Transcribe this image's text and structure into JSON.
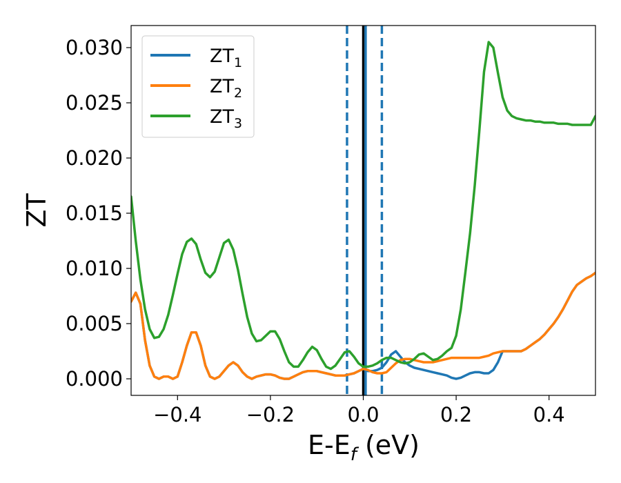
{
  "chart_data": {
    "type": "line",
    "xlabel": {
      "main": "E-E",
      "sub": "f",
      "suffix": " (eV)"
    },
    "ylabel": "ZT",
    "xlim": [
      -0.5,
      0.5
    ],
    "ylim": [
      -0.0015,
      0.032
    ],
    "xticks": [
      -0.4,
      -0.2,
      0.0,
      0.2,
      0.4
    ],
    "xtick_labels": [
      "−0.4",
      "−0.2",
      "0.0",
      "0.2",
      "0.4"
    ],
    "yticks": [
      0.0,
      0.005,
      0.01,
      0.015,
      0.02,
      0.025,
      0.03
    ],
    "ytick_labels": [
      "0.000",
      "0.005",
      "0.010",
      "0.015",
      "0.020",
      "0.025",
      "0.030"
    ],
    "grid": false,
    "legend_position": "top-left",
    "vlines": [
      {
        "x": -0.035,
        "style": "dashed",
        "color": "#1f77b4"
      },
      {
        "x": 0.0,
        "style": "solid",
        "color": "#000000"
      },
      {
        "x": 0.005,
        "style": "solid",
        "color": "#1f77b4"
      },
      {
        "x": 0.04,
        "style": "dashed",
        "color": "#1f77b4"
      }
    ],
    "series": [
      {
        "name": "ZT",
        "sub": "1",
        "color": "#1f77b4",
        "x": [
          -0.5,
          -0.49,
          -0.48,
          -0.47,
          -0.46,
          -0.45,
          -0.44,
          -0.43,
          -0.42,
          -0.41,
          -0.4,
          -0.39,
          -0.38,
          -0.37,
          -0.36,
          -0.35,
          -0.34,
          -0.33,
          -0.32,
          -0.31,
          -0.3,
          -0.29,
          -0.28,
          -0.27,
          -0.26,
          -0.25,
          -0.24,
          -0.23,
          -0.22,
          -0.21,
          -0.2,
          -0.19,
          -0.18,
          -0.17,
          -0.16,
          -0.15,
          -0.14,
          -0.13,
          -0.12,
          -0.11,
          -0.1,
          -0.09,
          -0.08,
          -0.07,
          -0.06,
          -0.05,
          -0.04,
          -0.03,
          -0.02,
          -0.01,
          0.0,
          0.01,
          0.02,
          0.03,
          0.04,
          0.05,
          0.06,
          0.07,
          0.08,
          0.09,
          0.1,
          0.11,
          0.12,
          0.13,
          0.14,
          0.15,
          0.16,
          0.17,
          0.18,
          0.19,
          0.2,
          0.21,
          0.22,
          0.23,
          0.24,
          0.25,
          0.26,
          0.27,
          0.28,
          0.29,
          0.3,
          0.31,
          0.32,
          0.33,
          0.34,
          0.35,
          0.36,
          0.37,
          0.38,
          0.39,
          0.4,
          0.41,
          0.42,
          0.43,
          0.44,
          0.45,
          0.46,
          0.47,
          0.48,
          0.49,
          0.5
        ],
        "y": [
          0.007,
          0.0078,
          0.0068,
          0.0035,
          0.0012,
          0.0002,
          0.0,
          0.0002,
          0.0002,
          0.0,
          0.0002,
          0.0015,
          0.003,
          0.0042,
          0.0042,
          0.003,
          0.0012,
          0.0002,
          0.0,
          0.0002,
          0.0007,
          0.0012,
          0.0015,
          0.0012,
          0.0006,
          0.0002,
          0.0,
          0.0002,
          0.0003,
          0.0004,
          0.0004,
          0.0003,
          0.0001,
          0.0,
          0.0,
          0.0002,
          0.0004,
          0.0006,
          0.0007,
          0.0007,
          0.0007,
          0.0006,
          0.0005,
          0.0004,
          0.0003,
          0.0003,
          0.0003,
          0.0004,
          0.0005,
          0.0007,
          0.0009,
          0.0007,
          0.0007,
          0.0008,
          0.001,
          0.0015,
          0.0022,
          0.0025,
          0.002,
          0.0015,
          0.0012,
          0.001,
          0.0009,
          0.0008,
          0.0007,
          0.0006,
          0.0005,
          0.0004,
          0.0003,
          0.0001,
          0.0,
          0.0001,
          0.0003,
          0.0005,
          0.0006,
          0.0006,
          0.0005,
          0.0005,
          0.0008,
          0.0015,
          0.0025,
          0.0025,
          0.0025,
          0.0025,
          0.0025,
          0.0027,
          0.003,
          0.0033,
          0.0036,
          0.004,
          0.0045,
          0.005,
          0.0056,
          0.0063,
          0.0071,
          0.0079,
          0.0085,
          0.0088,
          0.0091,
          0.0093,
          0.0096
        ]
      },
      {
        "name": "ZT",
        "sub": "2",
        "color": "#ff7f0e",
        "x": [
          -0.5,
          -0.49,
          -0.48,
          -0.47,
          -0.46,
          -0.45,
          -0.44,
          -0.43,
          -0.42,
          -0.41,
          -0.4,
          -0.39,
          -0.38,
          -0.37,
          -0.36,
          -0.35,
          -0.34,
          -0.33,
          -0.32,
          -0.31,
          -0.3,
          -0.29,
          -0.28,
          -0.27,
          -0.26,
          -0.25,
          -0.24,
          -0.23,
          -0.22,
          -0.21,
          -0.2,
          -0.19,
          -0.18,
          -0.17,
          -0.16,
          -0.15,
          -0.14,
          -0.13,
          -0.12,
          -0.11,
          -0.1,
          -0.09,
          -0.08,
          -0.07,
          -0.06,
          -0.05,
          -0.04,
          -0.03,
          -0.02,
          -0.01,
          0.0,
          0.01,
          0.02,
          0.03,
          0.04,
          0.05,
          0.06,
          0.07,
          0.08,
          0.09,
          0.1,
          0.11,
          0.12,
          0.13,
          0.14,
          0.15,
          0.16,
          0.17,
          0.18,
          0.19,
          0.2,
          0.21,
          0.22,
          0.23,
          0.24,
          0.25,
          0.26,
          0.27,
          0.28,
          0.29,
          0.3,
          0.31,
          0.32,
          0.33,
          0.34,
          0.35,
          0.36,
          0.37,
          0.38,
          0.39,
          0.4,
          0.41,
          0.42,
          0.43,
          0.44,
          0.45,
          0.46,
          0.47,
          0.48,
          0.49,
          0.5
        ],
        "y": [
          0.007,
          0.0078,
          0.0068,
          0.0035,
          0.0012,
          0.0002,
          0.0,
          0.0002,
          0.0002,
          0.0,
          0.0002,
          0.0015,
          0.003,
          0.0042,
          0.0042,
          0.003,
          0.0012,
          0.0002,
          0.0,
          0.0002,
          0.0007,
          0.0012,
          0.0015,
          0.0012,
          0.0006,
          0.0002,
          0.0,
          0.0002,
          0.0003,
          0.0004,
          0.0004,
          0.0003,
          0.0001,
          0.0,
          0.0,
          0.0002,
          0.0004,
          0.0006,
          0.0007,
          0.0007,
          0.0007,
          0.0006,
          0.0005,
          0.0004,
          0.0003,
          0.0003,
          0.0003,
          0.0004,
          0.0005,
          0.0007,
          0.0009,
          0.0008,
          0.0006,
          0.0005,
          0.0005,
          0.0006,
          0.001,
          0.0014,
          0.0017,
          0.0018,
          0.0018,
          0.0017,
          0.0016,
          0.0015,
          0.0015,
          0.0015,
          0.0016,
          0.0017,
          0.0018,
          0.0019,
          0.0019,
          0.0019,
          0.0019,
          0.0019,
          0.0019,
          0.0019,
          0.002,
          0.0021,
          0.0023,
          0.0024,
          0.0025,
          0.0025,
          0.0025,
          0.0025,
          0.0025,
          0.0027,
          0.003,
          0.0033,
          0.0036,
          0.004,
          0.0045,
          0.005,
          0.0056,
          0.0063,
          0.0071,
          0.0079,
          0.0085,
          0.0088,
          0.0091,
          0.0093,
          0.0096
        ]
      },
      {
        "name": "ZT",
        "sub": "3",
        "color": "#2ca02c",
        "x": [
          -0.5,
          -0.49,
          -0.48,
          -0.47,
          -0.46,
          -0.45,
          -0.44,
          -0.43,
          -0.42,
          -0.41,
          -0.4,
          -0.39,
          -0.38,
          -0.37,
          -0.36,
          -0.35,
          -0.34,
          -0.33,
          -0.32,
          -0.31,
          -0.3,
          -0.29,
          -0.28,
          -0.27,
          -0.26,
          -0.25,
          -0.24,
          -0.23,
          -0.22,
          -0.21,
          -0.2,
          -0.19,
          -0.18,
          -0.17,
          -0.16,
          -0.15,
          -0.14,
          -0.13,
          -0.12,
          -0.11,
          -0.1,
          -0.09,
          -0.08,
          -0.07,
          -0.06,
          -0.05,
          -0.04,
          -0.03,
          -0.02,
          -0.01,
          0.0,
          0.01,
          0.02,
          0.03,
          0.04,
          0.05,
          0.06,
          0.07,
          0.08,
          0.09,
          0.1,
          0.11,
          0.12,
          0.13,
          0.14,
          0.15,
          0.16,
          0.17,
          0.18,
          0.19,
          0.2,
          0.21,
          0.22,
          0.23,
          0.24,
          0.25,
          0.26,
          0.27,
          0.28,
          0.29,
          0.3,
          0.31,
          0.32,
          0.33,
          0.34,
          0.35,
          0.36,
          0.37,
          0.38,
          0.39,
          0.4,
          0.41,
          0.42,
          0.43,
          0.44,
          0.45,
          0.46,
          0.47,
          0.48,
          0.49,
          0.5
        ],
        "y": [
          0.0165,
          0.0125,
          0.009,
          0.0063,
          0.0045,
          0.0037,
          0.0038,
          0.0045,
          0.0058,
          0.0076,
          0.0095,
          0.0113,
          0.0124,
          0.0127,
          0.0122,
          0.0108,
          0.0096,
          0.0092,
          0.0097,
          0.011,
          0.0123,
          0.0126,
          0.0117,
          0.0099,
          0.0077,
          0.0056,
          0.0041,
          0.0034,
          0.0035,
          0.0039,
          0.0043,
          0.0043,
          0.0036,
          0.0025,
          0.0015,
          0.0011,
          0.0011,
          0.0017,
          0.0024,
          0.0029,
          0.0026,
          0.0018,
          0.0011,
          0.0009,
          0.0012,
          0.0018,
          0.0024,
          0.0025,
          0.002,
          0.0014,
          0.0011,
          0.0011,
          0.0012,
          0.0014,
          0.0017,
          0.0019,
          0.0019,
          0.0017,
          0.0015,
          0.0014,
          0.0015,
          0.0018,
          0.0022,
          0.0023,
          0.002,
          0.0017,
          0.0018,
          0.0021,
          0.0025,
          0.0028,
          0.0039,
          0.0063,
          0.0097,
          0.0132,
          0.0175,
          0.0225,
          0.0278,
          0.0305,
          0.03,
          0.0277,
          0.0255,
          0.0243,
          0.0238,
          0.0236,
          0.0235,
          0.0234,
          0.0234,
          0.0233,
          0.0233,
          0.0232,
          0.0232,
          0.0232,
          0.0231,
          0.0231,
          0.0231,
          0.023,
          0.023,
          0.023,
          0.023,
          0.023,
          0.0238
        ]
      }
    ]
  }
}
